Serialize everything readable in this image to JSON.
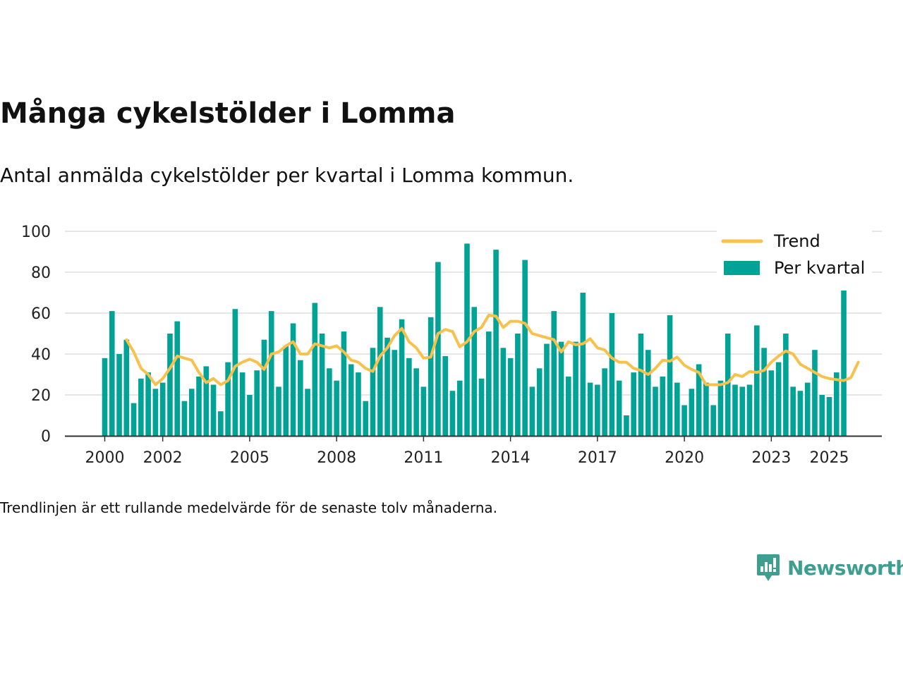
{
  "header": {
    "title": "Många cykelstölder i Lomma",
    "subtitle": "Antal anmälda cykelstölder per kvartal i Lomma kommun."
  },
  "footer": {
    "note": "Trendlinjen är ett rullande medelvärde för de senaste tolv månaderna."
  },
  "brand": {
    "name": "Newsworthy",
    "icon": "newsworthy-logo-icon"
  },
  "colors": {
    "bars": "#00A396",
    "trend": "#F7C14B",
    "grid": "#dddddd",
    "axis": "#333333",
    "brand": "#3e9e8f"
  },
  "chart_data": {
    "type": "bar",
    "title": "Många cykelstölder i Lomma",
    "xlabel": "",
    "ylabel": "",
    "ylim": [
      0,
      100
    ],
    "yticks": [
      "0",
      "20",
      "40",
      "60",
      "80",
      "100"
    ],
    "xticks": [
      "2000",
      "2002",
      "2005",
      "2008",
      "2011",
      "2014",
      "2017",
      "2020",
      "2023",
      "2025"
    ],
    "xtick_years": [
      2000,
      2002,
      2005,
      2008,
      2011,
      2014,
      2017,
      2020,
      2023,
      2025
    ],
    "start_year": 2000,
    "grid": true,
    "legend": {
      "placement": "top-right",
      "trend_label": "Trend",
      "bars_label": "Per kvartal"
    },
    "series": [
      {
        "name": "Per kvartal",
        "kind": "bar",
        "values": [
          38,
          61,
          40,
          47,
          16,
          28,
          31,
          23,
          26,
          50,
          56,
          17,
          23,
          29,
          34,
          25,
          12,
          36,
          62,
          31,
          20,
          32,
          47,
          61,
          24,
          44,
          55,
          37,
          23,
          65,
          50,
          33,
          27,
          51,
          35,
          31,
          17,
          43,
          63,
          48,
          42,
          57,
          38,
          33,
          24,
          58,
          85,
          39,
          22,
          27,
          94,
          63,
          28,
          51,
          91,
          43,
          38,
          50,
          86,
          24,
          33,
          45,
          61,
          46,
          29,
          46,
          70,
          26,
          25,
          33,
          60,
          27,
          10,
          31,
          50,
          42,
          24,
          29,
          59,
          26,
          15,
          23,
          35,
          26,
          15,
          27,
          50,
          25,
          24,
          25,
          54,
          43,
          32,
          36,
          50,
          24,
          22,
          26,
          42,
          20,
          19,
          31,
          72
        ]
      },
      {
        "name": "Trend",
        "kind": "line",
        "start_index": 3,
        "values": [
          47,
          41,
          33,
          30,
          25,
          28,
          33,
          39,
          38,
          37,
          31,
          26,
          28,
          25,
          27,
          34,
          36,
          37.5,
          36,
          32.5,
          40,
          41,
          44,
          46,
          40,
          40,
          45,
          44,
          43,
          44,
          41,
          37,
          36,
          33,
          31.5,
          39,
          43,
          49,
          52.5,
          46,
          43,
          38,
          38.5,
          50,
          52,
          51,
          43.5,
          46,
          51,
          53,
          59,
          58.5,
          53,
          56,
          56,
          55,
          50,
          49,
          48,
          47,
          41,
          46,
          44.5,
          45,
          47.5,
          43,
          42,
          38,
          36,
          36,
          33,
          32,
          30,
          33,
          37,
          36.5,
          38.5,
          34.5,
          32.5,
          31,
          25,
          25,
          25,
          26,
          30,
          29,
          31.5,
          31,
          32,
          36,
          39,
          41.5,
          40,
          35,
          33,
          31,
          29,
          28,
          27.5,
          27,
          28.5,
          36
        ]
      }
    ]
  }
}
